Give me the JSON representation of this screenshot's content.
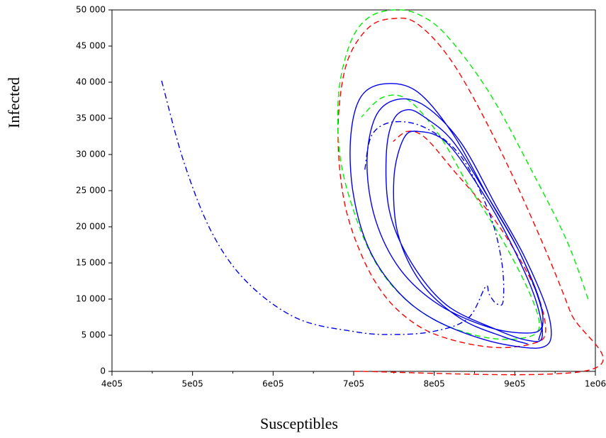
{
  "chart_data": {
    "type": "line",
    "x_label": "Susceptibles",
    "y_label": "Infected",
    "xlim": [
      400000,
      1000000
    ],
    "xticks": [
      {
        "value": 400000,
        "label": "4e05"
      },
      {
        "value": 500000,
        "label": "5e05"
      },
      {
        "value": 600000,
        "label": "6e05"
      },
      {
        "value": 700000,
        "label": "7e05"
      },
      {
        "value": 800000,
        "label": "8e05"
      },
      {
        "value": 900000,
        "label": "9e05"
      },
      {
        "value": 1000000,
        "label": "1e06"
      }
    ],
    "ylim": [
      0,
      50000
    ],
    "yticks": [
      0,
      {
        "value": 5000,
        "label": "5 000"
      },
      {
        "value": 10000,
        "label": "10 000"
      },
      {
        "value": 15000,
        "label": "15 000"
      },
      {
        "value": 20000,
        "label": "20 000"
      },
      {
        "value": 25000,
        "label": "25 000"
      },
      {
        "value": 30000,
        "label": "30 000"
      },
      {
        "value": 35000,
        "label": "35 000"
      },
      {
        "value": 40000,
        "label": "40 000"
      },
      {
        "value": 45000,
        "label": "45 000"
      },
      {
        "value": 50000,
        "label": "50 000"
      }
    ],
    "series": [
      {
        "color": "#ff0000",
        "dash": "8 5",
        "x": [
          700000,
          993000,
          969000,
          929600,
          876800,
          824000,
          780000,
          749000,
          718000,
          691000,
          680600,
          687600,
          709700,
          740400,
          780000,
          824000,
          876800,
          920800,
          938000,
          929600,
          903200,
          868000,
          824000,
          789000,
          767000,
          749000
        ],
        "values": [
          0,
          200,
          8200,
          19000,
          31800,
          42500,
          48000,
          48800,
          47500,
          42500,
          33700,
          23900,
          16100,
          10200,
          6300,
          4300,
          3300,
          3800,
          5300,
          10200,
          16100,
          22000,
          27800,
          32300,
          33200,
          31800
        ]
      },
      {
        "color": "#00ee00",
        "dash": "8 5",
        "x": [
          991000,
          964800,
          920800,
          868000,
          815000,
          780000,
          749000,
          718000,
          696000,
          681500,
          683000,
          700600,
          727000,
          762000,
          806000,
          858900,
          903000,
          929600,
          920800,
          885500,
          841500,
          806000,
          767000,
          736000,
          709700
        ],
        "values": [
          10000,
          18000,
          27800,
          38600,
          46500,
          49400,
          50000,
          48900,
          45500,
          38600,
          29800,
          22000,
          15100,
          10200,
          6800,
          4800,
          4500,
          5800,
          10200,
          18000,
          25900,
          32700,
          37600,
          37900,
          35200
        ]
      },
      {
        "color": "#0000ee",
        "dash": "8 4 2 4",
        "x": [
          461600,
          489700,
          524900,
          568900,
          630400,
          700900,
          744800,
          797600,
          841600,
          863600,
          868000,
          876800,
          885500,
          883800,
          868000,
          832800,
          788800,
          749000,
          722600,
          713700
        ],
        "values": [
          40200,
          28800,
          19000,
          12200,
          7300,
          5500,
          5100,
          5500,
          7300,
          11700,
          10700,
          9400,
          9700,
          15100,
          22000,
          29800,
          33700,
          34500,
          32700,
          27800
        ]
      },
      {
        "color": "#0000ee",
        "dash": "",
        "x": [
          929600,
          934000,
          907600,
          868000,
          824000,
          780000,
          740400,
          709700,
          696500,
          699000,
          718400,
          753600,
          797600,
          859000,
          912000,
          938000,
          945300,
          938000,
          911000,
          876800,
          832800,
          788800,
          753600,
          727000,
          716500,
          727000,
          757800,
          806000,
          868000,
          916000,
          934000,
          929600,
          903200,
          868000,
          824000,
          788800,
          767000,
          749000,
          740400,
          744800,
          771300,
          815000,
          876800,
          916000,
          934000,
          925000,
          894000,
          859000,
          815000,
          780000,
          762000,
          750000,
          755000,
          784000,
          832800,
          885500,
          916000
        ],
        "values": [
          4300,
          8200,
          16100,
          23900,
          32700,
          38600,
          39800,
          38100,
          32700,
          24900,
          17100,
          11200,
          7300,
          4500,
          3300,
          3500,
          5300,
          9200,
          16100,
          22900,
          31700,
          36700,
          37600,
          35200,
          28800,
          21000,
          14100,
          9200,
          6100,
          5300,
          6300,
          10200,
          17100,
          23900,
          31700,
          35100,
          36200,
          34700,
          29800,
          22000,
          15100,
          9200,
          5800,
          4300,
          4800,
          10200,
          18000,
          24900,
          31700,
          33200,
          32200,
          26800,
          19000,
          12200,
          7300,
          4800,
          3800
        ]
      }
    ]
  }
}
